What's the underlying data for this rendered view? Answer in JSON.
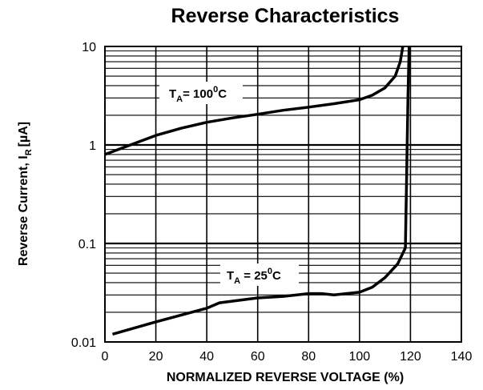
{
  "chart_data": {
    "type": "line",
    "title": "Reverse Characteristics",
    "xlabel": "NORMALIZED REVERSE VOLTAGE (%)",
    "ylabel": {
      "main": "Reverse Current, I",
      "sub": "R",
      "unit": "[µA]"
    },
    "xlim": [
      0,
      140
    ],
    "ylim": [
      0.01,
      10
    ],
    "y_scale": "log",
    "grid": true,
    "x_ticks": [
      "0",
      "20",
      "40",
      "60",
      "80",
      "100",
      "120",
      "140"
    ],
    "y_ticks": [
      "0.01",
      "0.1",
      "1",
      "10"
    ],
    "series": [
      {
        "name": {
          "main": "T",
          "sub": "A",
          "rest": "= 100",
          "sup": "0",
          "unit": "C"
        },
        "points": [
          [
            0,
            0.8
          ],
          [
            10,
            1.0
          ],
          [
            20,
            1.25
          ],
          [
            30,
            1.48
          ],
          [
            40,
            1.7
          ],
          [
            50,
            1.88
          ],
          [
            60,
            2.05
          ],
          [
            70,
            2.25
          ],
          [
            80,
            2.42
          ],
          [
            90,
            2.62
          ],
          [
            100,
            2.88
          ],
          [
            105,
            3.2
          ],
          [
            110,
            3.8
          ],
          [
            114,
            5.0
          ],
          [
            116,
            7.0
          ],
          [
            117,
            10
          ]
        ]
      },
      {
        "name": {
          "main": "T",
          "sub": "A",
          "rest": " = 25",
          "sup": "0",
          "unit": "C"
        },
        "points": [
          [
            3,
            0.012
          ],
          [
            20,
            0.016
          ],
          [
            40,
            0.022
          ],
          [
            45,
            0.025
          ],
          [
            60,
            0.028
          ],
          [
            70,
            0.029
          ],
          [
            80,
            0.031
          ],
          [
            85,
            0.031
          ],
          [
            90,
            0.03
          ],
          [
            100,
            0.032
          ],
          [
            105,
            0.036
          ],
          [
            110,
            0.045
          ],
          [
            115,
            0.062
          ],
          [
            118,
            0.09
          ],
          [
            118.5,
            0.5
          ],
          [
            119,
            3
          ],
          [
            119.5,
            10
          ]
        ]
      }
    ]
  }
}
